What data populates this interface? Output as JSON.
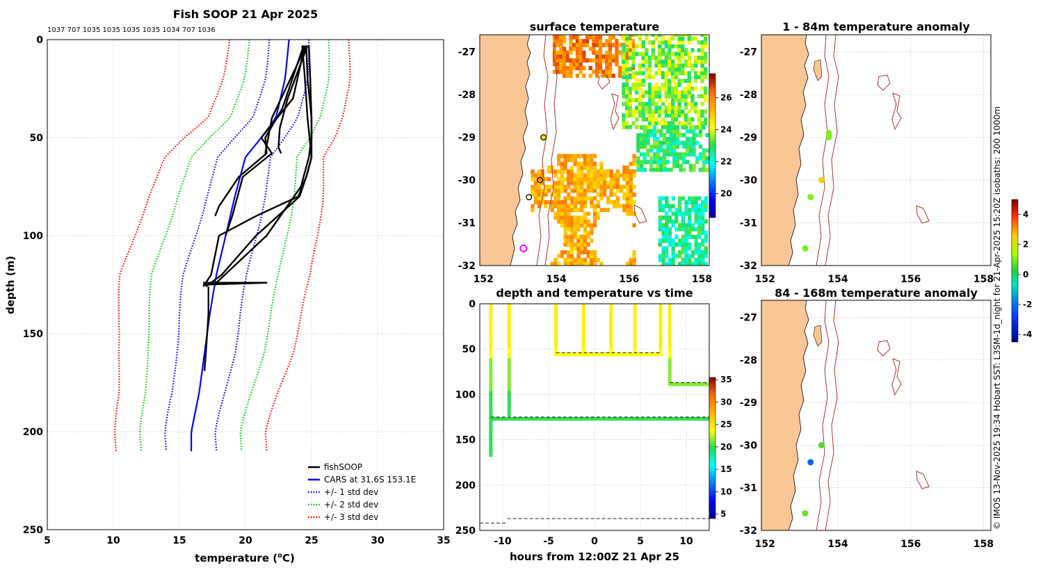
{
  "chart_data": [
    {
      "type": "line",
      "title": "Fish SOOP 21 Apr 2025",
      "top_labels": "1037 707 1035 1035 1035 1035 1034 707 1036",
      "xlabel": "temperature (",
      "xlabel_sup": "o",
      "xlabel_end": "C)",
      "ylabel": "depth (m)",
      "xlim": [
        5,
        35
      ],
      "ylim": [
        0,
        250
      ],
      "xticks": [
        5,
        10,
        15,
        20,
        25,
        30,
        35
      ],
      "yticks": [
        0,
        50,
        100,
        150,
        200,
        250
      ],
      "legend": [
        {
          "label": "fishSOOP",
          "color": "#000000",
          "style": "solid"
        },
        {
          "label": "CARS at 31.6S 153.1E",
          "color": "#0000ff",
          "style": "solid"
        },
        {
          "label": "+/- 1 std dev",
          "color": "#0000ff",
          "style": "dotted"
        },
        {
          "label": "+/- 2 std dev",
          "color": "#00cc00",
          "style": "dotted"
        },
        {
          "label": "+/- 3 std dev",
          "color": "#ff0000",
          "style": "dotted"
        }
      ],
      "climatology": {
        "depth": [
          0,
          20,
          40,
          50,
          60,
          80,
          100,
          120,
          140,
          160,
          180,
          200,
          210
        ],
        "mean": [
          23.3,
          23.0,
          22.3,
          21.2,
          20.0,
          19.2,
          18.5,
          17.8,
          17.3,
          16.9,
          16.5,
          15.9,
          15.9
        ],
        "std": [
          1.5,
          1.6,
          1.7,
          1.9,
          2.0,
          2.2,
          2.3,
          2.4,
          2.3,
          2.2,
          2.0,
          1.9,
          1.9
        ]
      },
      "series": [
        {
          "name": "fishSOOP",
          "color": "#000000",
          "depth": [
            3,
            20,
            40,
            60,
            68,
            80,
            100,
            120,
            126
          ],
          "temperature": [
            24.3,
            24.5,
            24.7,
            25.0,
            24.7,
            24.1,
            20.8,
            18.2,
            17.0
          ]
        },
        {
          "name": "fishSOOP",
          "color": "#000000",
          "depth": [
            3,
            20,
            40,
            60,
            70,
            80,
            90,
            100,
            120,
            126
          ],
          "temperature": [
            24.6,
            24.7,
            25.0,
            25.0,
            24.6,
            24.0,
            20.8,
            18.0,
            17.4,
            16.8
          ]
        },
        {
          "name": "fishSOOP",
          "color": "#000000",
          "depth": [
            3,
            20,
            40,
            50,
            60,
            75,
            100,
            124
          ],
          "temperature": [
            24.8,
            24.9,
            25.0,
            25.0,
            24.8,
            24.2,
            21.6,
            17.8
          ]
        },
        {
          "name": "fishSOOP",
          "color": "#000000",
          "depth": [
            3,
            30,
            50,
            58,
            70,
            90,
            100
          ],
          "temperature": [
            24.5,
            23.6,
            21.2,
            22.0,
            19.8,
            19.0,
            18.5
          ]
        },
        {
          "name": "fishSOOP",
          "color": "#000000",
          "depth": [
            3,
            35,
            50,
            58,
            70,
            85,
            90
          ],
          "temperature": [
            24.4,
            22.8,
            21.5,
            21.6,
            19.5,
            18.0,
            17.7
          ]
        },
        {
          "name": "fishSOOP",
          "color": "#000000",
          "depth": [
            3,
            30,
            45,
            55,
            58
          ],
          "temperature": [
            24.7,
            23.2,
            22.6,
            22.5,
            22.7
          ]
        },
        {
          "name": "fishSOOP",
          "color": "#000000",
          "depth": [
            3,
            40,
            58
          ],
          "temperature": [
            24.6,
            22.0,
            21.5
          ]
        },
        {
          "name": "fishSOOP",
          "color": "#000000",
          "depth": [
            124,
            124,
            125
          ],
          "temperature": [
            16.8,
            21.6,
            16.8
          ]
        },
        {
          "name": "fishSOOP",
          "color": "#000000",
          "depth": [
            126,
            140,
            160,
            169
          ],
          "temperature": [
            17.2,
            17.2,
            17.0,
            16.9
          ]
        }
      ]
    },
    {
      "type": "heatmap",
      "title": "surface temperature",
      "xticks": [
        152,
        154,
        156,
        158
      ],
      "yticks": [
        -27,
        -28,
        -29,
        -30,
        -31,
        -32
      ],
      "xlim": [
        151.9,
        158.2
      ],
      "ylim": [
        -32.0,
        -26.6
      ],
      "colorbar_ticks": [
        20,
        22,
        24,
        26
      ],
      "colorbar_range": [
        18.5,
        27.5
      ],
      "regions": [
        {
          "name": "northern warm",
          "lon_range": [
            153.9,
            156.1
          ],
          "lat_range": [
            -27.6,
            -26.6
          ],
          "temperature": 26.0
        },
        {
          "name": "north-east green",
          "lon_range": [
            155.8,
            158.1
          ],
          "lat_range": [
            -28.8,
            -26.6
          ],
          "temperature": 23.5
        },
        {
          "name": "mid-east green",
          "lon_range": [
            156.2,
            158.1
          ],
          "lat_range": [
            -29.8,
            -28.8
          ],
          "temperature": 22.8
        },
        {
          "name": "southern warm",
          "lon_range": [
            153.3,
            156.1
          ],
          "lat_range": [
            -32.0,
            -29.4
          ],
          "temperature": 25.4
        },
        {
          "name": "south-east green",
          "lon_range": [
            156.8,
            158.1
          ],
          "lat_range": [
            -32.0,
            -30.4
          ],
          "temperature": 22.5
        }
      ],
      "markers": [
        {
          "lon": 153.65,
          "lat": -29.0,
          "kind": "yellow-ring"
        },
        {
          "lon": 153.55,
          "lat": -30.0,
          "kind": "ring"
        },
        {
          "lon": 153.25,
          "lat": -30.4,
          "kind": "ring"
        },
        {
          "lon": 153.1,
          "lat": -31.6,
          "kind": "magenta-ring"
        }
      ]
    },
    {
      "type": "scatter",
      "title": "depth and temperature vs time",
      "xlabel": "hours from 12:00Z 21 Apr 25",
      "xlim": [
        -12.5,
        12.5
      ],
      "ylim": [
        0,
        250
      ],
      "xticks": [
        -10,
        -5,
        0,
        5,
        10
      ],
      "yticks": [
        0,
        50,
        100,
        150,
        200,
        250
      ],
      "colorbar_ticks": [
        5,
        10,
        15,
        20,
        25,
        30,
        35
      ],
      "colorbar_range": [
        4,
        35.5
      ],
      "bottom_depth": [
        {
          "x_from": -12.5,
          "x_to": -9.5,
          "depth": 242
        },
        {
          "x_from": -9.5,
          "x_to": 12.5,
          "depth": 237
        }
      ],
      "casts": [
        {
          "x": -11.3,
          "max_depth": 169
        },
        {
          "x": -9.3,
          "max_depth": 124
        },
        {
          "x": -4.2,
          "max_depth": 56
        },
        {
          "x": -1.2,
          "max_depth": 56
        },
        {
          "x": 1.8,
          "max_depth": 56
        },
        {
          "x": 4.4,
          "max_depth": 56
        },
        {
          "x": 7.2,
          "max_depth": 56
        },
        {
          "x": 8.2,
          "max_depth": 89
        }
      ],
      "tow_segments": [
        {
          "x_from": -11.3,
          "x_to": 12.5,
          "depth": 127
        },
        {
          "x_from": -4.2,
          "x_to": 7.2,
          "depth": 56
        },
        {
          "x_from": 8.2,
          "x_to": 12.5,
          "depth": 89
        }
      ]
    },
    {
      "type": "scatter",
      "title": "1 - 84m temperature anomaly",
      "xticks": [
        152,
        154,
        156,
        158
      ],
      "yticks": [
        -27,
        -28,
        -29,
        -30,
        -31,
        -32
      ],
      "points": [
        {
          "lon": 153.75,
          "lat": -28.9,
          "anomaly": 1.0
        },
        {
          "lon": 153.75,
          "lat": -29.0,
          "anomaly": 1.0
        },
        {
          "lon": 153.55,
          "lat": -30.0,
          "anomaly": 2.5
        },
        {
          "lon": 153.25,
          "lat": -30.4,
          "anomaly": 1.0
        },
        {
          "lon": 153.1,
          "lat": -31.6,
          "anomaly": 1.0
        }
      ]
    },
    {
      "type": "scatter",
      "title": "84 - 168m temperature anomaly",
      "xticks": [
        152,
        154,
        156,
        158
      ],
      "yticks": [
        -27,
        -28,
        -29,
        -30,
        -31,
        -32
      ],
      "points": [
        {
          "lon": 153.55,
          "lat": -30.0,
          "anomaly": 0.6
        },
        {
          "lon": 153.25,
          "lat": -30.4,
          "anomaly": -2.2
        },
        {
          "lon": 153.1,
          "lat": -31.6,
          "anomaly": 0.8
        }
      ]
    }
  ],
  "anomaly_colorbar": {
    "ticks": [
      4,
      2,
      0,
      -2,
      -4
    ],
    "range": [
      -4.5,
      5
    ]
  },
  "credit": "© IMOS 13-Nov-2025 19:34 Hobart SST: L3SM-1d_night for 21-Apr-2025 15:20Z isobaths: 200  1000m",
  "colors": {
    "land": "#f9c796",
    "isobath": "#a83232",
    "background": "#ffffff"
  }
}
